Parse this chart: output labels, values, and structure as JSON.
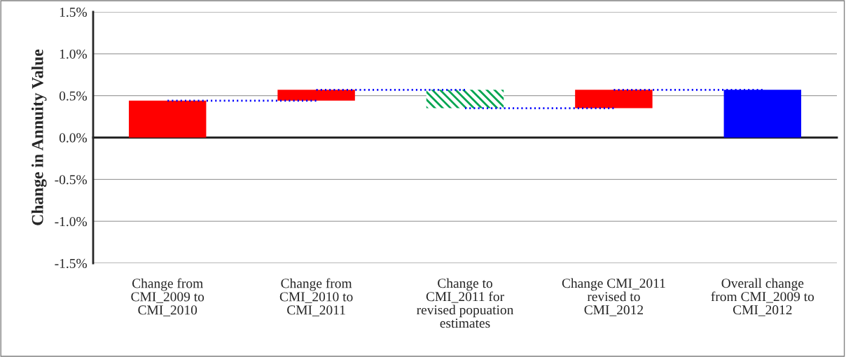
{
  "chart_data": {
    "type": "bar",
    "ylabel": "Change in Annuity Value",
    "categories": [
      "Change from\nCMI_2009 to\nCMI_2010",
      "Change from\nCMI_2010 to\nCMI_2011",
      "Change to\nCMI_2011 for\nrevised popuation\nestimates",
      "Change CMI_2011\nrevised to\nCMI_2012",
      "Overall change\nfrom CMI_2009 to\nCMI_2012"
    ],
    "values": [
      0.44,
      0.13,
      -0.22,
      0.22,
      0.57
    ],
    "base": [
      0,
      0.44,
      0.57,
      0.35,
      0
    ],
    "colors": [
      "#ff0000",
      "#ff0000",
      "#00a550",
      "#ff0000",
      "#0000ff"
    ],
    "ylim": [
      -1.5,
      1.5
    ],
    "yticks": [
      {
        "value": -1.5,
        "label": "-1.5%"
      },
      {
        "value": -1.0,
        "label": "-1.0%"
      },
      {
        "value": -0.5,
        "label": "-0.5%"
      },
      {
        "value": 0.0,
        "label": "0.0%"
      },
      {
        "value": 0.5,
        "label": "0.5%"
      },
      {
        "value": 1.0,
        "label": "1.0%"
      },
      {
        "value": 1.5,
        "label": "1.5%"
      }
    ],
    "series": [
      {
        "type": "line",
        "color": "#0000ff",
        "line_style": "dotted",
        "values": [
          0.44,
          0.44,
          null,
          null,
          null
        ]
      },
      {
        "type": "line",
        "color": "#0000ff",
        "line_style": "dotted",
        "values": [
          null,
          0.57,
          0.57,
          null,
          null
        ]
      },
      {
        "type": "line",
        "color": "#0000ff",
        "line_style": "dotted",
        "values": [
          null,
          null,
          0.35,
          0.35,
          null
        ]
      },
      {
        "type": "line",
        "color": "#0000ff",
        "line_style": "dotted",
        "values": [
          null,
          null,
          null,
          0.57,
          0.57
        ]
      }
    ],
    "grid": "y"
  }
}
